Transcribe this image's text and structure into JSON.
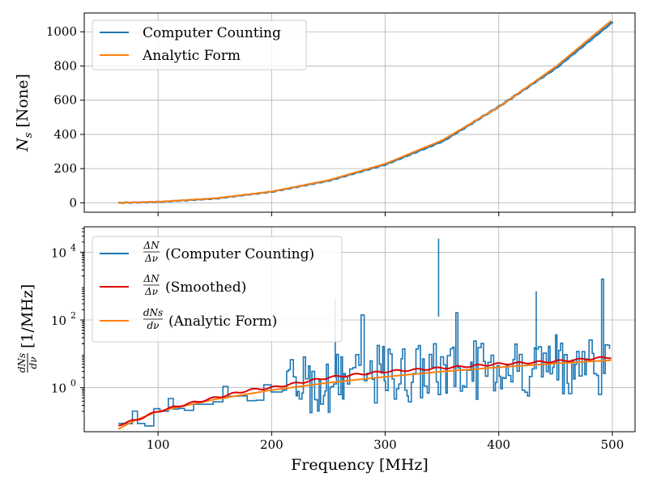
{
  "chart_data": [
    {
      "type": "line",
      "xlabel": "Frequency [MHz]",
      "ylabel": "N_s [None]",
      "ylabel_parts": {
        "symbol": "N",
        "subscript": "s",
        "unit": "[None]"
      },
      "xlim": [
        35,
        520
      ],
      "ylim": [
        -55,
        1110
      ],
      "xticks": [
        100,
        200,
        300,
        400,
        500
      ],
      "xtick_labels": [
        "100",
        "200",
        "300",
        "400",
        "500"
      ],
      "yticks": [
        0,
        200,
        400,
        600,
        800,
        1000
      ],
      "ytick_labels": [
        "0",
        "200",
        "400",
        "600",
        "800",
        "1000"
      ],
      "grid": true,
      "legend_position": "top-left",
      "series": [
        {
          "name": "Computer Counting",
          "color": "#1f77b4",
          "x": [
            65,
            100,
            150,
            200,
            250,
            300,
            350,
            400,
            450,
            500
          ],
          "y": [
            0,
            5,
            25,
            65,
            130,
            225,
            360,
            565,
            790,
            1060
          ]
        },
        {
          "name": "Analytic Form",
          "color": "#ff7f0e",
          "x": [
            65,
            100,
            150,
            200,
            250,
            300,
            350,
            400,
            450,
            500
          ],
          "y": [
            0,
            6,
            26,
            66,
            132,
            228,
            365,
            560,
            795,
            1070
          ]
        }
      ]
    },
    {
      "type": "line",
      "xlabel": "Frequency [MHz]",
      "ylabel": "dN_s/dν [1/MHz]",
      "ylabel_parts": {
        "num": "dNs",
        "den": "dν",
        "unit": "[1/MHz]"
      },
      "yscale": "log",
      "xlim": [
        35,
        520
      ],
      "ylim_log10": [
        -1.3,
        4.75
      ],
      "xticks": [
        100,
        200,
        300,
        400,
        500
      ],
      "xtick_labels": [
        "100",
        "200",
        "300",
        "400",
        "500"
      ],
      "yticks_log10": [
        0,
        2,
        4
      ],
      "ytick_labels": [
        {
          "base": "10",
          "exp": "0"
        },
        {
          "base": "10",
          "exp": "2"
        },
        {
          "base": "10",
          "exp": "4"
        }
      ],
      "grid": true,
      "legend_position": "top-left",
      "series": [
        {
          "name": "ΔN/Δν (Computer Counting)",
          "color": "#1f77b4",
          "style": "noisy-step",
          "x": [
            65,
            100,
            150,
            200,
            250,
            256,
            300,
            347,
            350,
            400,
            433,
            450,
            500
          ],
          "y": [
            0.08,
            0.2,
            0.5,
            1.0,
            1.5,
            400,
            2.5,
            25000,
            3.0,
            4.0,
            700,
            5.0,
            5.0
          ]
        },
        {
          "name": "ΔN/Δν (Smoothed)",
          "color": "#e00000",
          "x": [
            65,
            80,
            100,
            120,
            150,
            180,
            200,
            250,
            300,
            350,
            400,
            450,
            500
          ],
          "y": [
            0.08,
            0.11,
            0.2,
            0.3,
            0.5,
            0.85,
            1.0,
            2.0,
            3.0,
            3.8,
            5.0,
            6.0,
            8.0
          ]
        },
        {
          "name": "dN_s/dν (Analytic Form)",
          "color": "#ff7f0e",
          "x": [
            65,
            80,
            100,
            150,
            200,
            250,
            300,
            350,
            400,
            450,
            500
          ],
          "y": [
            0.06,
            0.11,
            0.2,
            0.45,
            0.85,
            1.4,
            2.1,
            3.0,
            4.0,
            5.2,
            6.5
          ]
        }
      ],
      "legend_labels": [
        {
          "frac_num": "ΔN",
          "frac_den": "Δν",
          "text": "(Computer Counting)"
        },
        {
          "frac_num": "ΔN",
          "frac_den": "Δν",
          "text": "(Smoothed)"
        },
        {
          "frac_num": "dNs",
          "frac_den": "dν",
          "text": "(Analytic Form)"
        }
      ]
    }
  ]
}
